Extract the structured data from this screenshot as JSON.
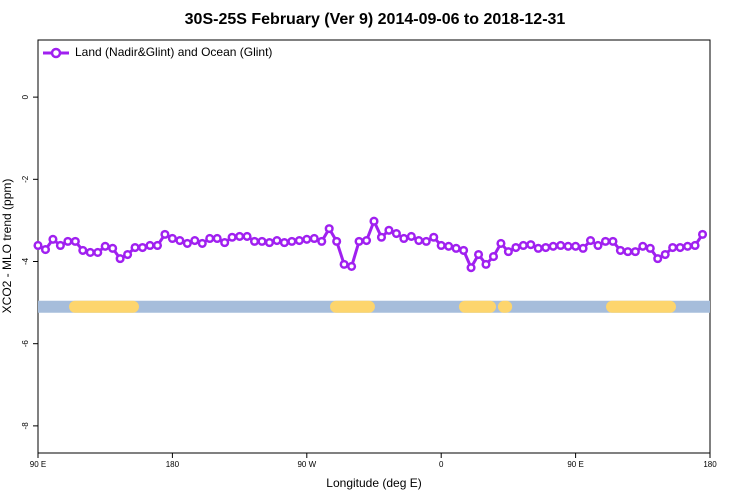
{
  "chart_data": {
    "type": "line",
    "title": "30S-25S February (Ver 9)   2014-09-06 to 2018-12-31",
    "xlabel": "Longitude (deg E)",
    "ylabel": "XCO2 - MLO trend (ppm)",
    "xlim": [
      90,
      540
    ],
    "xticks": [
      {
        "value": 90,
        "label": "90 E"
      },
      180,
      {
        "value": 270,
        "label": "90 W"
      },
      {
        "value": 360,
        "label": "0"
      },
      {
        "value": 450,
        "label": "90 E"
      },
      {
        "value": 540,
        "label": "180"
      }
    ],
    "ylim": [
      -8.66,
      1.39
    ],
    "yticks": [
      0,
      -2,
      -4,
      -6,
      -8
    ],
    "legend": "top-left",
    "surface_band": {
      "y": -5.1,
      "ocean_color": "#a6bddb",
      "land_color": "#fdd56d",
      "land": [
        [
          114.8,
          153.6
        ],
        [
          289.6,
          311.6
        ],
        [
          375.9,
          392.7
        ],
        [
          402.0,
          403.5
        ],
        [
          474.4,
          513.2
        ]
      ]
    },
    "series": [
      {
        "name": "Land (Nadir&Glint) and Ocean (Glint)",
        "color": "#a020f0",
        "x": [
          90,
          95,
          100,
          105,
          110,
          115,
          120,
          125,
          130,
          135,
          140,
          145,
          150,
          155,
          160,
          165,
          170,
          175,
          180,
          185,
          190,
          195,
          200,
          205,
          210,
          215,
          220,
          225,
          230,
          235,
          240,
          245,
          250,
          255,
          260,
          265,
          270,
          275,
          280,
          285,
          290,
          295,
          300,
          305,
          310,
          315,
          320,
          325,
          330,
          335,
          340,
          345,
          350,
          355,
          360,
          365,
          370,
          375,
          380,
          385,
          390,
          395,
          400,
          405,
          410,
          415,
          420,
          425,
          430,
          435,
          440,
          445,
          450,
          455,
          460,
          465,
          470,
          475,
          480,
          485,
          490,
          495,
          500,
          505,
          510,
          515,
          520,
          525,
          530,
          535
        ],
        "values": [
          -3.61,
          -3.71,
          -3.46,
          -3.61,
          -3.51,
          -3.51,
          -3.73,
          -3.78,
          -3.78,
          -3.63,
          -3.68,
          -3.93,
          -3.83,
          -3.66,
          -3.66,
          -3.61,
          -3.61,
          -3.34,
          -3.44,
          -3.49,
          -3.56,
          -3.49,
          -3.56,
          -3.44,
          -3.44,
          -3.54,
          -3.41,
          -3.39,
          -3.39,
          -3.51,
          -3.51,
          -3.54,
          -3.49,
          -3.54,
          -3.51,
          -3.49,
          -3.46,
          -3.44,
          -3.51,
          -3.2,
          -3.51,
          -4.07,
          -4.12,
          -3.51,
          -3.49,
          -3.02,
          -3.41,
          -3.24,
          -3.32,
          -3.44,
          -3.39,
          -3.49,
          -3.51,
          -3.41,
          -3.61,
          -3.63,
          -3.68,
          -3.73,
          -4.15,
          -3.83,
          -4.07,
          -3.88,
          -3.56,
          -3.76,
          -3.66,
          -3.61,
          -3.59,
          -3.68,
          -3.66,
          -3.63,
          -3.61,
          -3.63,
          -3.63,
          -3.68,
          -3.49,
          -3.61,
          -3.51,
          -3.51,
          -3.73,
          -3.76,
          -3.76,
          -3.63,
          -3.68,
          -3.93,
          -3.83,
          -3.66,
          -3.66,
          -3.63,
          -3.61,
          -3.34
        ]
      }
    ]
  }
}
